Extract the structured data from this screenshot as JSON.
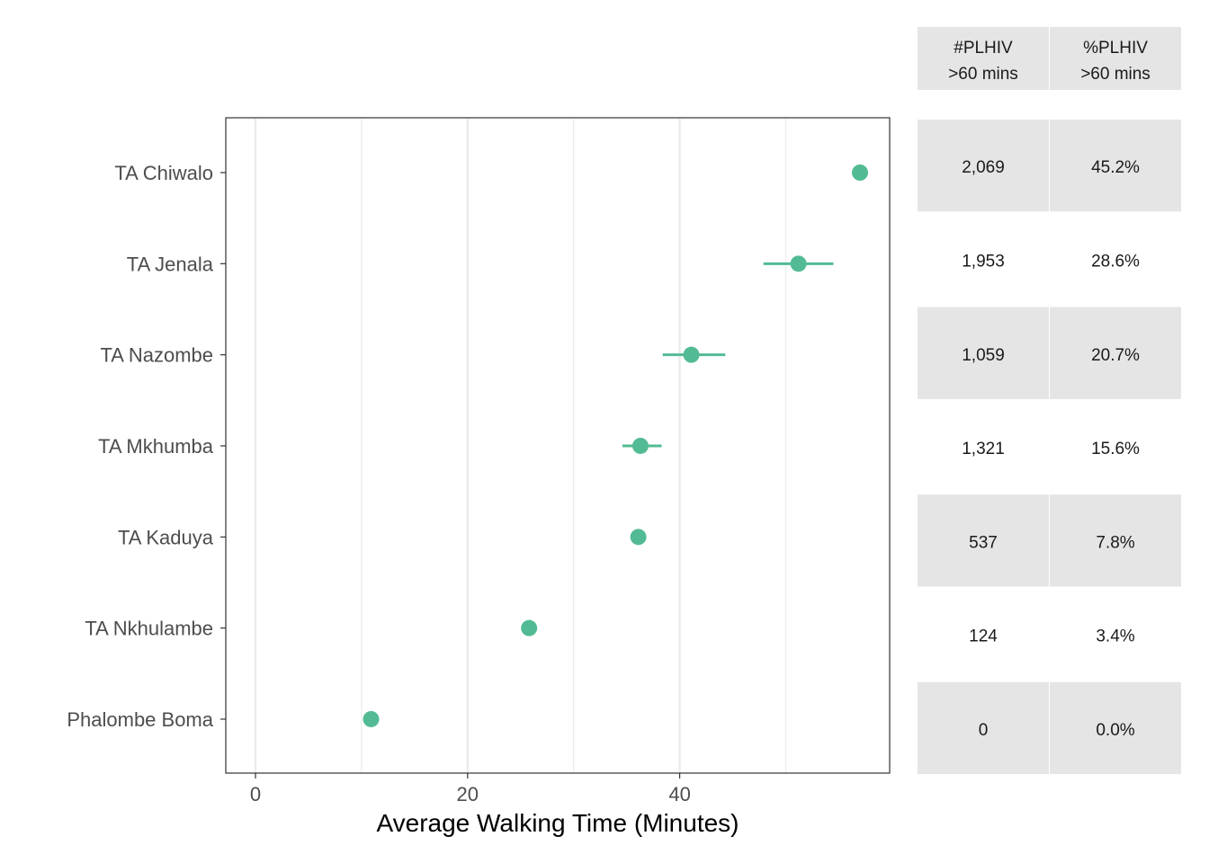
{
  "chart_data": {
    "type": "scatter",
    "categories": [
      "TA Chiwalo",
      "TA Jenala",
      "TA Nazombe",
      "TA Mkhumba",
      "TA Kaduya",
      "TA Nkhulambe",
      "Phalombe Boma"
    ],
    "series": [
      {
        "values": [
          57.0,
          51.2,
          41.1,
          36.3,
          36.1,
          25.8,
          10.9
        ],
        "ci_low": [
          57.0,
          47.9,
          38.4,
          34.6,
          35.6,
          25.8,
          10.9
        ],
        "ci_high": [
          57.0,
          54.5,
          44.3,
          38.3,
          36.6,
          25.8,
          10.9
        ],
        "color": "#52bb94"
      }
    ],
    "xlabel": "Average Walking Time (Minutes)",
    "ylabel": "",
    "xlim": [
      -2.8,
      59.8
    ],
    "xticks": [
      "0",
      "20",
      "40"
    ],
    "xtick_values": [
      0,
      20,
      40
    ],
    "grid": true
  },
  "table": {
    "headers": [
      {
        "line1": "#PLHIV",
        "line2": ">60 mins"
      },
      {
        "line1": "%PLHIV",
        "line2": ">60 mins"
      }
    ],
    "rows": [
      [
        "2,069",
        "45.2%"
      ],
      [
        "1,953",
        "28.6%"
      ],
      [
        "1,059",
        "20.7%"
      ],
      [
        "1,321",
        "15.6%"
      ],
      [
        "537",
        "7.8%"
      ],
      [
        "124",
        "3.4%"
      ],
      [
        "0",
        "0.0%"
      ]
    ],
    "shade_color": "#e5e5e5"
  }
}
